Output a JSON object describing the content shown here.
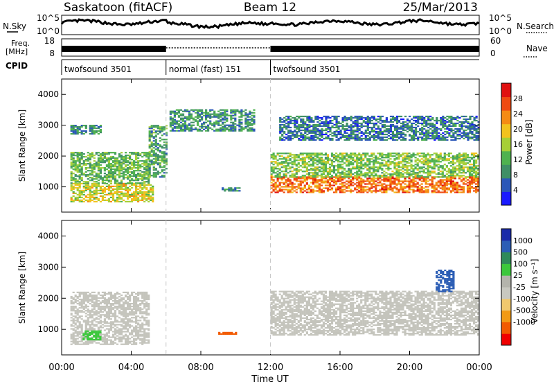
{
  "header": {
    "station": "Saskatoon (fitACF)",
    "beam": "Beam 12",
    "date": "25/Mar/2013"
  },
  "noise_panel": {
    "left_label": "N.Sky",
    "right_label": "N.Search",
    "left_ticks": [
      "10^5",
      "10^0"
    ],
    "right_ticks": [
      "10^5",
      "10^0"
    ]
  },
  "freq_panel": {
    "left_label_1": "Freq.",
    "left_label_2": "[MHz]",
    "left_ticks": [
      "18",
      "8"
    ],
    "right_label": "Nave",
    "right_ticks": [
      "60",
      "0"
    ]
  },
  "cpid": {
    "label": "CPID",
    "segments": [
      {
        "name": "twofsound 3501",
        "start": 0,
        "end": 6
      },
      {
        "name": "normal (fast) 151",
        "start": 6,
        "end": 12
      },
      {
        "name": "twofsound 3501",
        "start": 12,
        "end": 24
      }
    ]
  },
  "x_axis": {
    "label": "Time UT",
    "ticks": [
      "00:00",
      "04:00",
      "08:00",
      "12:00",
      "16:00",
      "20:00",
      "00:00"
    ]
  },
  "colors": {
    "power": [
      "#1a1aff",
      "#2b57b8",
      "#3f8f66",
      "#4fb24f",
      "#a6cf37",
      "#f2c21e",
      "#f58b14",
      "#ef4a12",
      "#e01010"
    ],
    "velocity": [
      "#f00000",
      "#f25a00",
      "#f29a14",
      "#f0c86e",
      "#c8c8c0",
      "#b4b4ac",
      "#3cc83c",
      "#2f8a5a",
      "#2b5db5",
      "#1a2aa8"
    ],
    "groundscatter": "#c4c4bc"
  },
  "chart_data": [
    {
      "type": "heatmap",
      "title": "Power",
      "ylabel": "Slant Range [km]",
      "ylim": [
        180,
        4500
      ],
      "xlim": [
        0,
        24
      ],
      "yticks": [
        "1000",
        "2000",
        "3000",
        "4000"
      ],
      "colorbar_label": "Power [dB]",
      "colorbar_ticks": [
        "4",
        "8",
        "12",
        "16",
        "20",
        "24",
        "28"
      ],
      "colorbar_range": [
        0,
        32
      ],
      "bands": [
        {
          "t": [
            0.5,
            5.2
          ],
          "r": [
            500,
            1100
          ],
          "p": 18
        },
        {
          "t": [
            0.5,
            5.0
          ],
          "r": [
            1100,
            2100
          ],
          "p": 12
        },
        {
          "t": [
            0.5,
            2.2
          ],
          "r": [
            2700,
            3000
          ],
          "p": 8
        },
        {
          "t": [
            5.0,
            6.0
          ],
          "r": [
            1300,
            3000
          ],
          "p": 10
        },
        {
          "t": [
            6.2,
            11.0
          ],
          "r": [
            2800,
            3500
          ],
          "p": 8
        },
        {
          "t": [
            9.2,
            10.2
          ],
          "r": [
            850,
            950
          ],
          "p": 8
        },
        {
          "t": [
            12.0,
            24.0
          ],
          "r": [
            800,
            1300
          ],
          "p": 26
        },
        {
          "t": [
            12.0,
            24.0
          ],
          "r": [
            1300,
            2100
          ],
          "p": 14
        },
        {
          "t": [
            12.5,
            24.0
          ],
          "r": [
            2500,
            3300
          ],
          "p": 6
        }
      ]
    },
    {
      "type": "heatmap",
      "title": "Velocity",
      "ylabel": "Slant Range [km]",
      "ylim": [
        180,
        4500
      ],
      "xlim": [
        0,
        24
      ],
      "yticks": [
        "1000",
        "2000",
        "3000",
        "4000"
      ],
      "colorbar_label": "Velocity [m s⁻¹]",
      "colorbar_ticks": [
        "1000",
        "500",
        "100",
        "25",
        "-25",
        "-100",
        "-500",
        "-1000"
      ],
      "bands": [
        {
          "t": [
            0.5,
            5.0
          ],
          "r": [
            500,
            2200
          ],
          "v": 0
        },
        {
          "t": [
            1.2,
            2.2
          ],
          "r": [
            650,
            950
          ],
          "v": 200
        },
        {
          "t": [
            12.0,
            24.0
          ],
          "r": [
            800,
            2200
          ],
          "v": 0
        },
        {
          "t": [
            9.0,
            10.0
          ],
          "r": [
            830,
            920
          ],
          "v": -300
        },
        {
          "t": [
            21.5,
            22.5
          ],
          "r": [
            2200,
            2900
          ],
          "v": 600
        }
      ]
    }
  ]
}
